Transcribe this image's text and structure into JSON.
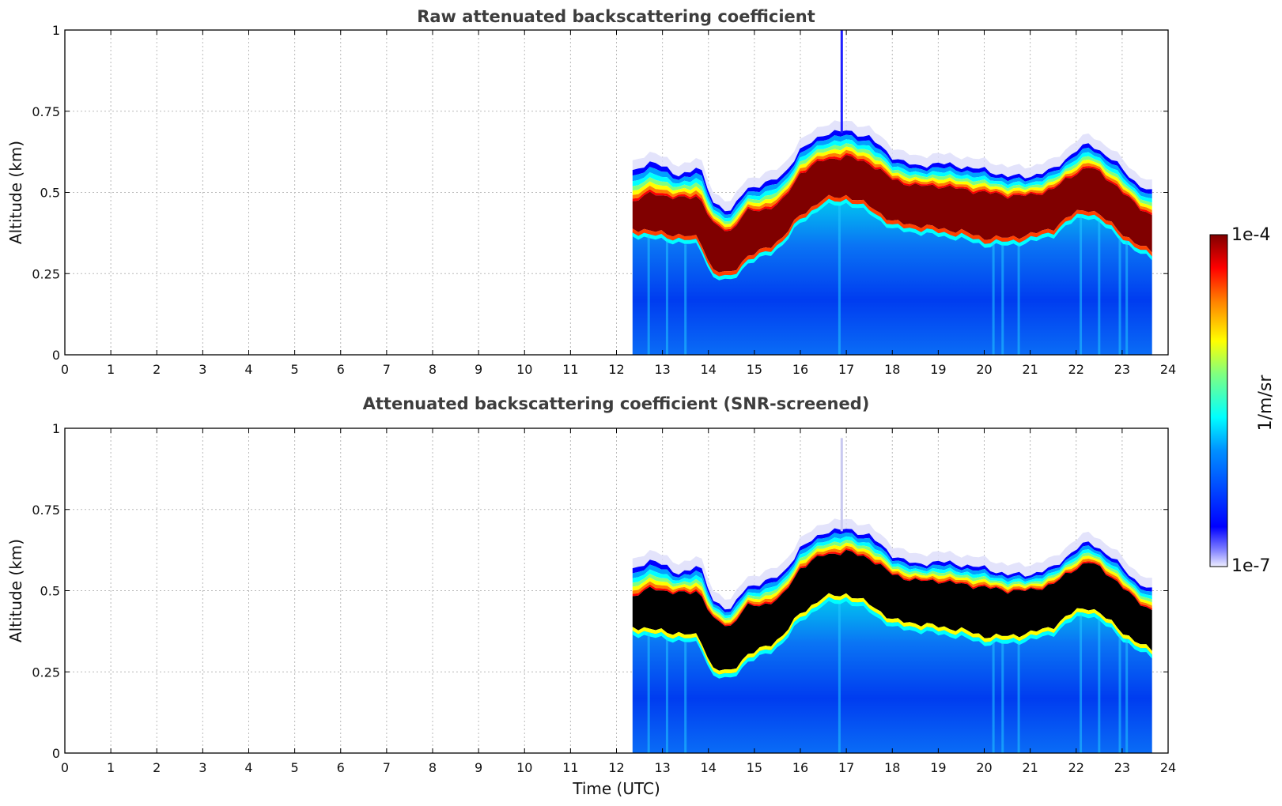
{
  "chart_data": [
    {
      "type": "heatmap",
      "title": "Raw attenuated backscattering coefficient",
      "xlabel": "",
      "ylabel": "Altitude (km)",
      "xlim": [
        0,
        24
      ],
      "ylim": [
        0,
        1
      ],
      "xticks": [
        "0",
        "1",
        "2",
        "3",
        "4",
        "5",
        "6",
        "7",
        "8",
        "9",
        "10",
        "11",
        "12",
        "13",
        "14",
        "15",
        "16",
        "17",
        "18",
        "19",
        "20",
        "21",
        "22",
        "23",
        "24"
      ],
      "yticks": [
        "0",
        "0.25",
        "0.5",
        "0.75",
        "1"
      ],
      "grid": true,
      "screened": false,
      "data_start_hour": 12.35,
      "data_end_hour": 23.65,
      "layer_profile": [
        {
          "t": 12.35,
          "top": 0.56,
          "core_top": 0.47,
          "core_bottom": 0.39
        },
        {
          "t": 12.8,
          "top": 0.6,
          "core_top": 0.5,
          "core_bottom": 0.38
        },
        {
          "t": 13.3,
          "top": 0.55,
          "core_top": 0.48,
          "core_bottom": 0.37
        },
        {
          "t": 13.8,
          "top": 0.58,
          "core_top": 0.49,
          "core_bottom": 0.36
        },
        {
          "t": 14.1,
          "top": 0.47,
          "core_top": 0.4,
          "core_bottom": 0.26
        },
        {
          "t": 14.5,
          "top": 0.44,
          "core_top": 0.38,
          "core_bottom": 0.25
        },
        {
          "t": 14.8,
          "top": 0.51,
          "core_top": 0.44,
          "core_bottom": 0.3
        },
        {
          "t": 15.3,
          "top": 0.53,
          "core_top": 0.45,
          "core_bottom": 0.33
        },
        {
          "t": 15.6,
          "top": 0.55,
          "core_top": 0.47,
          "core_bottom": 0.36
        },
        {
          "t": 16.0,
          "top": 0.63,
          "core_top": 0.56,
          "core_bottom": 0.43
        },
        {
          "t": 16.5,
          "top": 0.68,
          "core_top": 0.6,
          "core_bottom": 0.48
        },
        {
          "t": 17.0,
          "top": 0.69,
          "core_top": 0.61,
          "core_bottom": 0.49
        },
        {
          "t": 17.5,
          "top": 0.67,
          "core_top": 0.59,
          "core_bottom": 0.46
        },
        {
          "t": 18.0,
          "top": 0.61,
          "core_top": 0.54,
          "core_bottom": 0.41
        },
        {
          "t": 18.5,
          "top": 0.58,
          "core_top": 0.52,
          "core_bottom": 0.4
        },
        {
          "t": 19.0,
          "top": 0.59,
          "core_top": 0.52,
          "core_bottom": 0.39
        },
        {
          "t": 19.5,
          "top": 0.58,
          "core_top": 0.51,
          "core_bottom": 0.38
        },
        {
          "t": 20.0,
          "top": 0.57,
          "core_top": 0.5,
          "core_bottom": 0.36
        },
        {
          "t": 20.5,
          "top": 0.55,
          "core_top": 0.49,
          "core_bottom": 0.36
        },
        {
          "t": 21.0,
          "top": 0.55,
          "core_top": 0.49,
          "core_bottom": 0.37
        },
        {
          "t": 21.5,
          "top": 0.57,
          "core_top": 0.51,
          "core_bottom": 0.39
        },
        {
          "t": 22.0,
          "top": 0.63,
          "core_top": 0.56,
          "core_bottom": 0.44
        },
        {
          "t": 22.3,
          "top": 0.65,
          "core_top": 0.58,
          "core_bottom": 0.45
        },
        {
          "t": 22.8,
          "top": 0.6,
          "core_top": 0.53,
          "core_bottom": 0.4
        },
        {
          "t": 23.3,
          "top": 0.53,
          "core_top": 0.46,
          "core_bottom": 0.34
        },
        {
          "t": 23.65,
          "top": 0.5,
          "core_top": 0.43,
          "core_bottom": 0.32
        }
      ]
    },
    {
      "type": "heatmap",
      "title": "Attenuated backscattering coefficient (SNR-screened)",
      "xlabel": "Time (UTC)",
      "ylabel": "Altitude (km)",
      "xlim": [
        0,
        24
      ],
      "ylim": [
        0,
        1
      ],
      "xticks": [
        "0",
        "1",
        "2",
        "3",
        "4",
        "5",
        "6",
        "7",
        "8",
        "9",
        "10",
        "11",
        "12",
        "13",
        "14",
        "15",
        "16",
        "17",
        "18",
        "19",
        "20",
        "21",
        "22",
        "23",
        "24"
      ],
      "yticks": [
        "0",
        "0.25",
        "0.5",
        "0.75",
        "1"
      ],
      "grid": true,
      "screened": true,
      "data_start_hour": 12.35,
      "data_end_hour": 23.65,
      "layer_profile": [
        {
          "t": 12.35,
          "top": 0.56,
          "core_top": 0.48,
          "core_bottom": 0.39
        },
        {
          "t": 12.8,
          "top": 0.6,
          "core_top": 0.51,
          "core_bottom": 0.38
        },
        {
          "t": 13.3,
          "top": 0.55,
          "core_top": 0.49,
          "core_bottom": 0.37
        },
        {
          "t": 13.8,
          "top": 0.58,
          "core_top": 0.5,
          "core_bottom": 0.36
        },
        {
          "t": 14.1,
          "top": 0.47,
          "core_top": 0.41,
          "core_bottom": 0.26
        },
        {
          "t": 14.5,
          "top": 0.44,
          "core_top": 0.39,
          "core_bottom": 0.25
        },
        {
          "t": 14.8,
          "top": 0.51,
          "core_top": 0.45,
          "core_bottom": 0.3
        },
        {
          "t": 15.3,
          "top": 0.53,
          "core_top": 0.46,
          "core_bottom": 0.33
        },
        {
          "t": 15.6,
          "top": 0.55,
          "core_top": 0.48,
          "core_bottom": 0.36
        },
        {
          "t": 16.0,
          "top": 0.63,
          "core_top": 0.57,
          "core_bottom": 0.43
        },
        {
          "t": 16.5,
          "top": 0.68,
          "core_top": 0.61,
          "core_bottom": 0.48
        },
        {
          "t": 17.0,
          "top": 0.69,
          "core_top": 0.62,
          "core_bottom": 0.49
        },
        {
          "t": 17.5,
          "top": 0.67,
          "core_top": 0.6,
          "core_bottom": 0.46
        },
        {
          "t": 18.0,
          "top": 0.61,
          "core_top": 0.55,
          "core_bottom": 0.41
        },
        {
          "t": 18.5,
          "top": 0.58,
          "core_top": 0.53,
          "core_bottom": 0.4
        },
        {
          "t": 19.0,
          "top": 0.59,
          "core_top": 0.53,
          "core_bottom": 0.39
        },
        {
          "t": 19.5,
          "top": 0.58,
          "core_top": 0.52,
          "core_bottom": 0.38
        },
        {
          "t": 20.0,
          "top": 0.57,
          "core_top": 0.51,
          "core_bottom": 0.36
        },
        {
          "t": 20.5,
          "top": 0.55,
          "core_top": 0.5,
          "core_bottom": 0.36
        },
        {
          "t": 21.0,
          "top": 0.55,
          "core_top": 0.5,
          "core_bottom": 0.37
        },
        {
          "t": 21.5,
          "top": 0.57,
          "core_top": 0.52,
          "core_bottom": 0.39
        },
        {
          "t": 22.0,
          "top": 0.63,
          "core_top": 0.57,
          "core_bottom": 0.44
        },
        {
          "t": 22.3,
          "top": 0.65,
          "core_top": 0.59,
          "core_bottom": 0.45
        },
        {
          "t": 22.8,
          "top": 0.6,
          "core_top": 0.54,
          "core_bottom": 0.4
        },
        {
          "t": 23.3,
          "top": 0.53,
          "core_top": 0.47,
          "core_bottom": 0.34
        },
        {
          "t": 23.65,
          "top": 0.5,
          "core_top": 0.44,
          "core_bottom": 0.32
        }
      ]
    }
  ],
  "colorbar": {
    "label": "1/m/sr",
    "max_label": "1e-4",
    "min_label": "1e-7",
    "scale": "log",
    "colors": [
      "#e8e8f8",
      "#0000ff",
      "#0080ff",
      "#00ffff",
      "#80ff80",
      "#ffff00",
      "#ff8000",
      "#ff0000",
      "#800000"
    ]
  }
}
